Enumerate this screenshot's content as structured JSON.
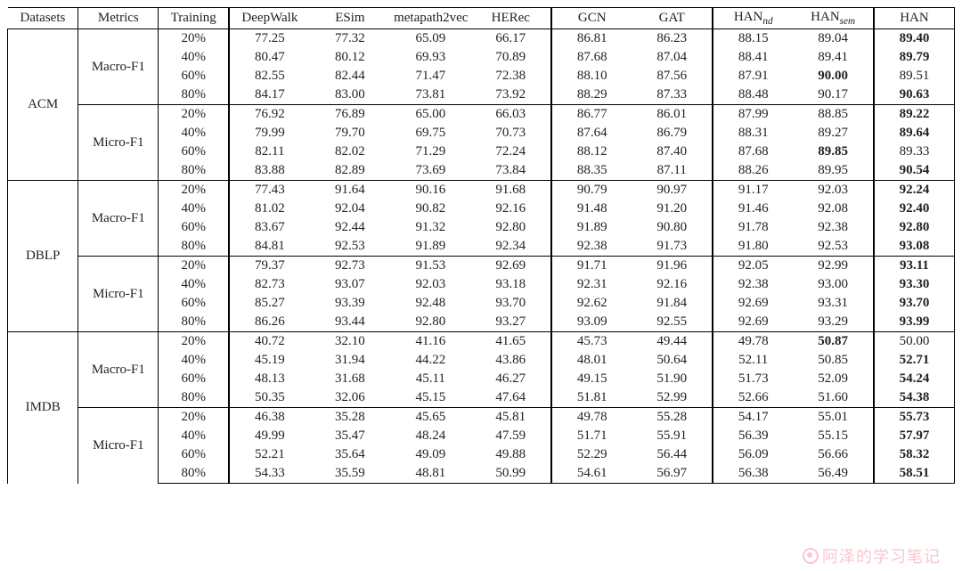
{
  "table": {
    "type": "table",
    "background_color": "#ffffff",
    "border_color": "#000000",
    "font_family": "Times New Roman",
    "body_fontsize": 15,
    "columns": [
      {
        "key": "datasets",
        "label": "Datasets",
        "width_pct": 7.5
      },
      {
        "key": "metrics",
        "label": "Metrics",
        "width_pct": 8.5
      },
      {
        "key": "training",
        "label": "Training",
        "width_pct": 7.5
      },
      {
        "key": "deepwalk",
        "label": "DeepWalk",
        "width_pct": 8.55
      },
      {
        "key": "esim",
        "label": "ESim",
        "width_pct": 8.55
      },
      {
        "key": "metapath2vec",
        "label": "metapath2vec",
        "width_pct": 8.55
      },
      {
        "key": "herec",
        "label": "HERec",
        "width_pct": 8.55
      },
      {
        "key": "gcn",
        "label": "GCN",
        "width_pct": 8.55
      },
      {
        "key": "gat",
        "label": "GAT",
        "width_pct": 8.55
      },
      {
        "key": "han_nd",
        "label": "HAN_nd",
        "sub": "nd",
        "width_pct": 8.55
      },
      {
        "key": "han_sem",
        "label": "HAN_sem",
        "sub": "sem",
        "width_pct": 8.55
      },
      {
        "key": "han",
        "label": "HAN",
        "width_pct": 8.55
      }
    ],
    "datasets": [
      {
        "name": "ACM",
        "metrics": [
          {
            "name": "Macro-F1",
            "rows": [
              {
                "training": "20%",
                "vals": [
                  "77.25",
                  "77.32",
                  "65.09",
                  "66.17",
                  "86.81",
                  "86.23",
                  "88.15",
                  "89.04",
                  "89.40"
                ],
                "bold": [
                  false,
                  false,
                  false,
                  false,
                  false,
                  false,
                  false,
                  false,
                  true
                ]
              },
              {
                "training": "40%",
                "vals": [
                  "80.47",
                  "80.12",
                  "69.93",
                  "70.89",
                  "87.68",
                  "87.04",
                  "88.41",
                  "89.41",
                  "89.79"
                ],
                "bold": [
                  false,
                  false,
                  false,
                  false,
                  false,
                  false,
                  false,
                  false,
                  true
                ]
              },
              {
                "training": "60%",
                "vals": [
                  "82.55",
                  "82.44",
                  "71.47",
                  "72.38",
                  "88.10",
                  "87.56",
                  "87.91",
                  "90.00",
                  "89.51"
                ],
                "bold": [
                  false,
                  false,
                  false,
                  false,
                  false,
                  false,
                  false,
                  true,
                  false
                ]
              },
              {
                "training": "80%",
                "vals": [
                  "84.17",
                  "83.00",
                  "73.81",
                  "73.92",
                  "88.29",
                  "87.33",
                  "88.48",
                  "90.17",
                  "90.63"
                ],
                "bold": [
                  false,
                  false,
                  false,
                  false,
                  false,
                  false,
                  false,
                  false,
                  true
                ]
              }
            ]
          },
          {
            "name": "Micro-F1",
            "rows": [
              {
                "training": "20%",
                "vals": [
                  "76.92",
                  "76.89",
                  "65.00",
                  "66.03",
                  "86.77",
                  "86.01",
                  "87.99",
                  "88.85",
                  "89.22"
                ],
                "bold": [
                  false,
                  false,
                  false,
                  false,
                  false,
                  false,
                  false,
                  false,
                  true
                ]
              },
              {
                "training": "40%",
                "vals": [
                  "79.99",
                  "79.70",
                  "69.75",
                  "70.73",
                  "87.64",
                  "86.79",
                  "88.31",
                  "89.27",
                  "89.64"
                ],
                "bold": [
                  false,
                  false,
                  false,
                  false,
                  false,
                  false,
                  false,
                  false,
                  true
                ]
              },
              {
                "training": "60%",
                "vals": [
                  "82.11",
                  "82.02",
                  "71.29",
                  "72.24",
                  "88.12",
                  "87.40",
                  "87.68",
                  "89.85",
                  "89.33"
                ],
                "bold": [
                  false,
                  false,
                  false,
                  false,
                  false,
                  false,
                  false,
                  true,
                  false
                ]
              },
              {
                "training": "80%",
                "vals": [
                  "83.88",
                  "82.89",
                  "73.69",
                  "73.84",
                  "88.35",
                  "87.11",
                  "88.26",
                  "89.95",
                  "90.54"
                ],
                "bold": [
                  false,
                  false,
                  false,
                  false,
                  false,
                  false,
                  false,
                  false,
                  true
                ]
              }
            ]
          }
        ]
      },
      {
        "name": "DBLP",
        "metrics": [
          {
            "name": "Macro-F1",
            "rows": [
              {
                "training": "20%",
                "vals": [
                  "77.43",
                  "91.64",
                  "90.16",
                  "91.68",
                  "90.79",
                  "90.97",
                  "91.17",
                  "92.03",
                  "92.24"
                ],
                "bold": [
                  false,
                  false,
                  false,
                  false,
                  false,
                  false,
                  false,
                  false,
                  true
                ]
              },
              {
                "training": "40%",
                "vals": [
                  "81.02",
                  "92.04",
                  "90.82",
                  "92.16",
                  "91.48",
                  "91.20",
                  "91.46",
                  "92.08",
                  "92.40"
                ],
                "bold": [
                  false,
                  false,
                  false,
                  false,
                  false,
                  false,
                  false,
                  false,
                  true
                ]
              },
              {
                "training": "60%",
                "vals": [
                  "83.67",
                  "92.44",
                  "91.32",
                  "92.80",
                  "91.89",
                  "90.80",
                  "91.78",
                  "92.38",
                  "92.80"
                ],
                "bold": [
                  false,
                  false,
                  false,
                  false,
                  false,
                  false,
                  false,
                  false,
                  true
                ]
              },
              {
                "training": "80%",
                "vals": [
                  "84.81",
                  "92.53",
                  "91.89",
                  "92.34",
                  "92.38",
                  "91.73",
                  "91.80",
                  "92.53",
                  "93.08"
                ],
                "bold": [
                  false,
                  false,
                  false,
                  false,
                  false,
                  false,
                  false,
                  false,
                  true
                ]
              }
            ]
          },
          {
            "name": "Micro-F1",
            "rows": [
              {
                "training": "20%",
                "vals": [
                  "79.37",
                  "92.73",
                  "91.53",
                  "92.69",
                  "91.71",
                  "91.96",
                  "92.05",
                  "92.99",
                  "93.11"
                ],
                "bold": [
                  false,
                  false,
                  false,
                  false,
                  false,
                  false,
                  false,
                  false,
                  true
                ]
              },
              {
                "training": "40%",
                "vals": [
                  "82.73",
                  "93.07",
                  "92.03",
                  "93.18",
                  "92.31",
                  "92.16",
                  "92.38",
                  "93.00",
                  "93.30"
                ],
                "bold": [
                  false,
                  false,
                  false,
                  false,
                  false,
                  false,
                  false,
                  false,
                  true
                ]
              },
              {
                "training": "60%",
                "vals": [
                  "85.27",
                  "93.39",
                  "92.48",
                  "93.70",
                  "92.62",
                  "91.84",
                  "92.69",
                  "93.31",
                  "93.70"
                ],
                "bold": [
                  false,
                  false,
                  false,
                  false,
                  false,
                  false,
                  false,
                  false,
                  true
                ]
              },
              {
                "training": "80%",
                "vals": [
                  "86.26",
                  "93.44",
                  "92.80",
                  "93.27",
                  "93.09",
                  "92.55",
                  "92.69",
                  "93.29",
                  "93.99"
                ],
                "bold": [
                  false,
                  false,
                  false,
                  false,
                  false,
                  false,
                  false,
                  false,
                  true
                ]
              }
            ]
          }
        ]
      },
      {
        "name": "IMDB",
        "metrics": [
          {
            "name": "Macro-F1",
            "rows": [
              {
                "training": "20%",
                "vals": [
                  "40.72",
                  "32.10",
                  "41.16",
                  "41.65",
                  "45.73",
                  "49.44",
                  "49.78",
                  "50.87",
                  "50.00"
                ],
                "bold": [
                  false,
                  false,
                  false,
                  false,
                  false,
                  false,
                  false,
                  true,
                  false
                ]
              },
              {
                "training": "40%",
                "vals": [
                  "45.19",
                  "31.94",
                  "44.22",
                  "43.86",
                  "48.01",
                  "50.64",
                  "52.11",
                  "50.85",
                  "52.71"
                ],
                "bold": [
                  false,
                  false,
                  false,
                  false,
                  false,
                  false,
                  false,
                  false,
                  true
                ]
              },
              {
                "training": "60%",
                "vals": [
                  "48.13",
                  "31.68",
                  "45.11",
                  "46.27",
                  "49.15",
                  "51.90",
                  "51.73",
                  "52.09",
                  "54.24"
                ],
                "bold": [
                  false,
                  false,
                  false,
                  false,
                  false,
                  false,
                  false,
                  false,
                  true
                ]
              },
              {
                "training": "80%",
                "vals": [
                  "50.35",
                  "32.06",
                  "45.15",
                  "47.64",
                  "51.81",
                  "52.99",
                  "52.66",
                  "51.60",
                  "54.38"
                ],
                "bold": [
                  false,
                  false,
                  false,
                  false,
                  false,
                  false,
                  false,
                  false,
                  true
                ]
              }
            ]
          },
          {
            "name": "Micro-F1",
            "rows": [
              {
                "training": "20%",
                "vals": [
                  "46.38",
                  "35.28",
                  "45.65",
                  "45.81",
                  "49.78",
                  "55.28",
                  "54.17",
                  "55.01",
                  "55.73"
                ],
                "bold": [
                  false,
                  false,
                  false,
                  false,
                  false,
                  false,
                  false,
                  false,
                  true
                ]
              },
              {
                "training": "40%",
                "vals": [
                  "49.99",
                  "35.47",
                  "48.24",
                  "47.59",
                  "51.71",
                  "55.91",
                  "56.39",
                  "55.15",
                  "57.97"
                ],
                "bold": [
                  false,
                  false,
                  false,
                  false,
                  false,
                  false,
                  false,
                  false,
                  true
                ]
              },
              {
                "training": "60%",
                "vals": [
                  "52.21",
                  "35.64",
                  "49.09",
                  "49.88",
                  "52.29",
                  "56.44",
                  "56.09",
                  "56.66",
                  "58.32"
                ],
                "bold": [
                  false,
                  false,
                  false,
                  false,
                  false,
                  false,
                  false,
                  false,
                  true
                ]
              },
              {
                "training": "80%",
                "vals": [
                  "54.33",
                  "35.59",
                  "48.81",
                  "50.99",
                  "54.61",
                  "56.97",
                  "56.38",
                  "56.49",
                  "58.51"
                ],
                "bold": [
                  false,
                  false,
                  false,
                  false,
                  false,
                  false,
                  false,
                  false,
                  true
                ]
              }
            ]
          }
        ]
      }
    ]
  },
  "watermark": {
    "text": "阿泽的学习笔记",
    "color": "#f39aa9",
    "opacity": 0.55,
    "fontsize": 18
  }
}
